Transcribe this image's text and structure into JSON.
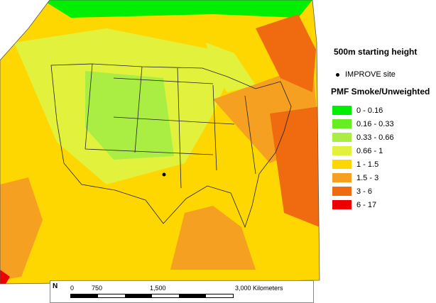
{
  "map": {
    "starting_height_title": "500m starting height",
    "site_marker_label": "IMPROVE site",
    "legend_title": "PMF Smoke/Unweighted",
    "legend": [
      {
        "label": "0 - 0.16",
        "color": "#00ee00"
      },
      {
        "label": "0.16 - 0.33",
        "color": "#66ee22"
      },
      {
        "label": "0.33 - 0.66",
        "color": "#aaee44"
      },
      {
        "label": "0.66 - 1",
        "color": "#e2f23c"
      },
      {
        "label": "1 - 1.5",
        "color": "#ffd700"
      },
      {
        "label": "1.5 - 3",
        "color": "#f5a020"
      },
      {
        "label": "3 - 6",
        "color": "#f06a10"
      },
      {
        "label": "6 - 17",
        "color": "#ee0000"
      }
    ],
    "scale": {
      "north_label": "N",
      "ticks": [
        "0",
        "750",
        "1,500",
        "3,000 Kilometers"
      ]
    }
  }
}
